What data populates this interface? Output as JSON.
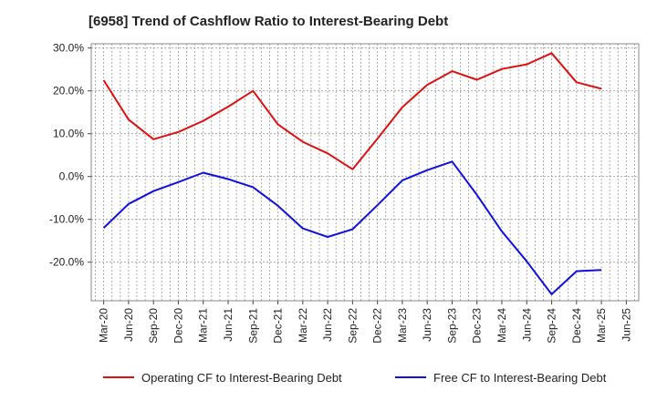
{
  "chart_data": {
    "type": "line",
    "title": "[6958]  Trend of Cashflow Ratio to Interest-Bearing Debt",
    "xlabel": "",
    "ylabel": "",
    "x": [
      "Mar-20",
      "Jun-20",
      "Sep-20",
      "Dec-20",
      "Mar-21",
      "Jun-21",
      "Sep-21",
      "Dec-21",
      "Mar-22",
      "Jun-22",
      "Sep-22",
      "Dec-22",
      "Mar-23",
      "Jun-23",
      "Sep-23",
      "Dec-23",
      "Mar-24",
      "Jun-24",
      "Sep-24",
      "Dec-24",
      "Mar-25",
      "Jun-25"
    ],
    "ylim": [
      -29,
      31
    ],
    "yticks": [
      30,
      20,
      10,
      0,
      -10,
      -20
    ],
    "ytick_labels": [
      "30.0%",
      "20.0%",
      "10.0%",
      "0.0%",
      "-10.0%",
      "-20.0%"
    ],
    "grid": true,
    "legend_position": "bottom",
    "series": [
      {
        "name": "Operating CF to Interest-Bearing Debt",
        "color": "#dd1111",
        "values": [
          22.5,
          13.3,
          8.7,
          10.4,
          13.0,
          16.3,
          20.0,
          12.2,
          8.1,
          5.4,
          1.7,
          8.8,
          16.2,
          21.4,
          24.6,
          22.6,
          25.1,
          26.2,
          28.8,
          22.0,
          20.5,
          null
        ]
      },
      {
        "name": "Free CF to Interest-Bearing Debt",
        "color": "#1111dd",
        "values": [
          -12.0,
          -6.4,
          -3.4,
          -1.3,
          0.9,
          -0.6,
          -2.5,
          -6.8,
          -12.1,
          -14.1,
          -12.3,
          -6.7,
          -0.9,
          1.5,
          3.5,
          -4.3,
          -12.8,
          -19.8,
          -27.5,
          -22.1,
          -21.8,
          null
        ]
      }
    ]
  }
}
